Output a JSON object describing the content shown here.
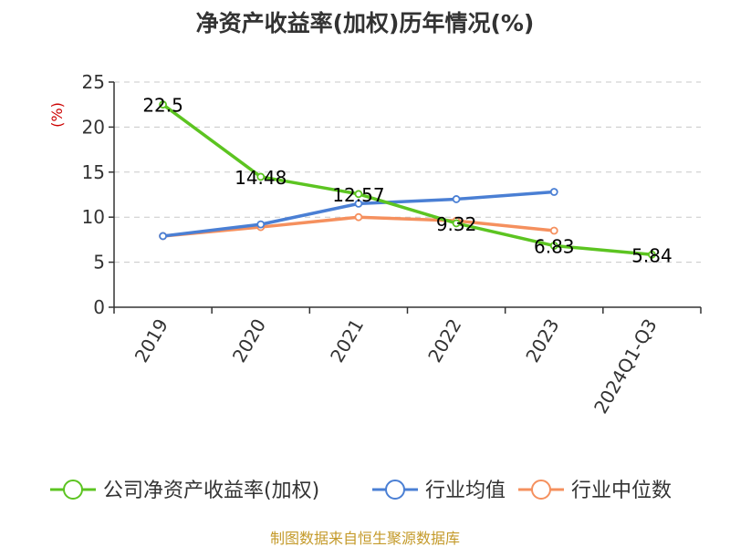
{
  "chart_data": {
    "type": "line",
    "title": "净资产收益率(加权)历年情况(%)",
    "ylabel": "(%)",
    "xlabel": "",
    "categories": [
      "2019",
      "2020",
      "2021",
      "2022",
      "2023",
      "2024Q1-Q3"
    ],
    "ylim": [
      0,
      25
    ],
    "yticks": [
      0,
      5,
      10,
      15,
      20,
      25
    ],
    "grid": "horizontal-dashed",
    "legend_position": "bottom",
    "series": [
      {
        "name": "公司净资产收益率(加权)",
        "color": "#5cc421",
        "values": [
          22.5,
          14.48,
          12.57,
          9.32,
          6.83,
          5.84
        ],
        "labels": [
          "22.5",
          "14.48",
          "12.57",
          "9.32",
          "6.83",
          "5.84"
        ]
      },
      {
        "name": "行业均值",
        "color": "#4a7fd4",
        "values": [
          7.9,
          9.2,
          11.5,
          12.0,
          12.8,
          null
        ]
      },
      {
        "name": "行业中位数",
        "color": "#f5905e",
        "values": [
          7.9,
          8.9,
          10.0,
          9.6,
          8.5,
          null
        ]
      }
    ]
  },
  "footer": {
    "source": "制图数据来自恒生聚源数据库"
  }
}
